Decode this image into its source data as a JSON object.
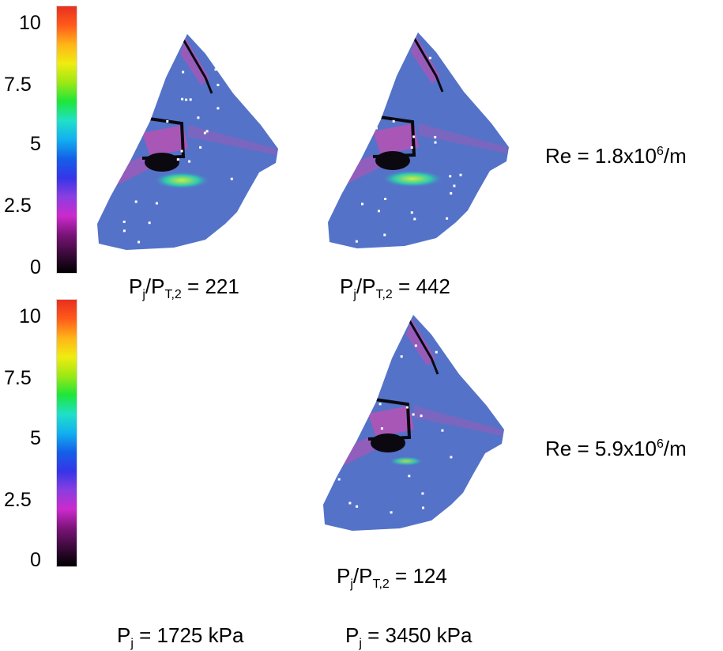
{
  "colorbars": [
    {
      "ticks": [
        "10",
        "7.5",
        "5",
        "2.5",
        "0"
      ]
    },
    {
      "ticks": [
        "10",
        "7.5",
        "5",
        "2.5",
        "0"
      ]
    }
  ],
  "colormap": [
    "#000000",
    "#3a0a3a",
    "#7a1478",
    "#cc2acc",
    "#8a3ee0",
    "#3535e8",
    "#1460e8",
    "#12b0f0",
    "#20e0c8",
    "#1ee63a",
    "#9ce814",
    "#f0ec10",
    "#ffb418",
    "#ff5a1a",
    "#e83020"
  ],
  "panel_colors": {
    "base": "#5472c8",
    "magenta": "#c44fb0",
    "dark": "#0b0810",
    "hot_outer": "#2ec8b0",
    "hot_inner": "#c8f040",
    "dots": "#ffffff"
  },
  "rows": [
    {
      "re_label": "Re = 1.8x10",
      "re_exp": "6",
      "re_unit": "/m"
    },
    {
      "re_label": "Re = 5.9x10",
      "re_exp": "6",
      "re_unit": "/m"
    }
  ],
  "ratio_labels": [
    {
      "p": "P",
      "j": "j",
      "slash": "/P",
      "t2": "T,2",
      "value": " = 221"
    },
    {
      "p": "P",
      "j": "j",
      "slash": "/P",
      "t2": "T,2",
      "value": " = 442"
    },
    {
      "p": "P",
      "j": "j",
      "slash": "/P",
      "t2": "T,2",
      "value": " = 124"
    }
  ],
  "column_labels": [
    {
      "p": "P",
      "j": "j",
      "value": " = 1725 kPa"
    },
    {
      "p": "P",
      "j": "j",
      "value": " = 3450 kPa"
    }
  ]
}
